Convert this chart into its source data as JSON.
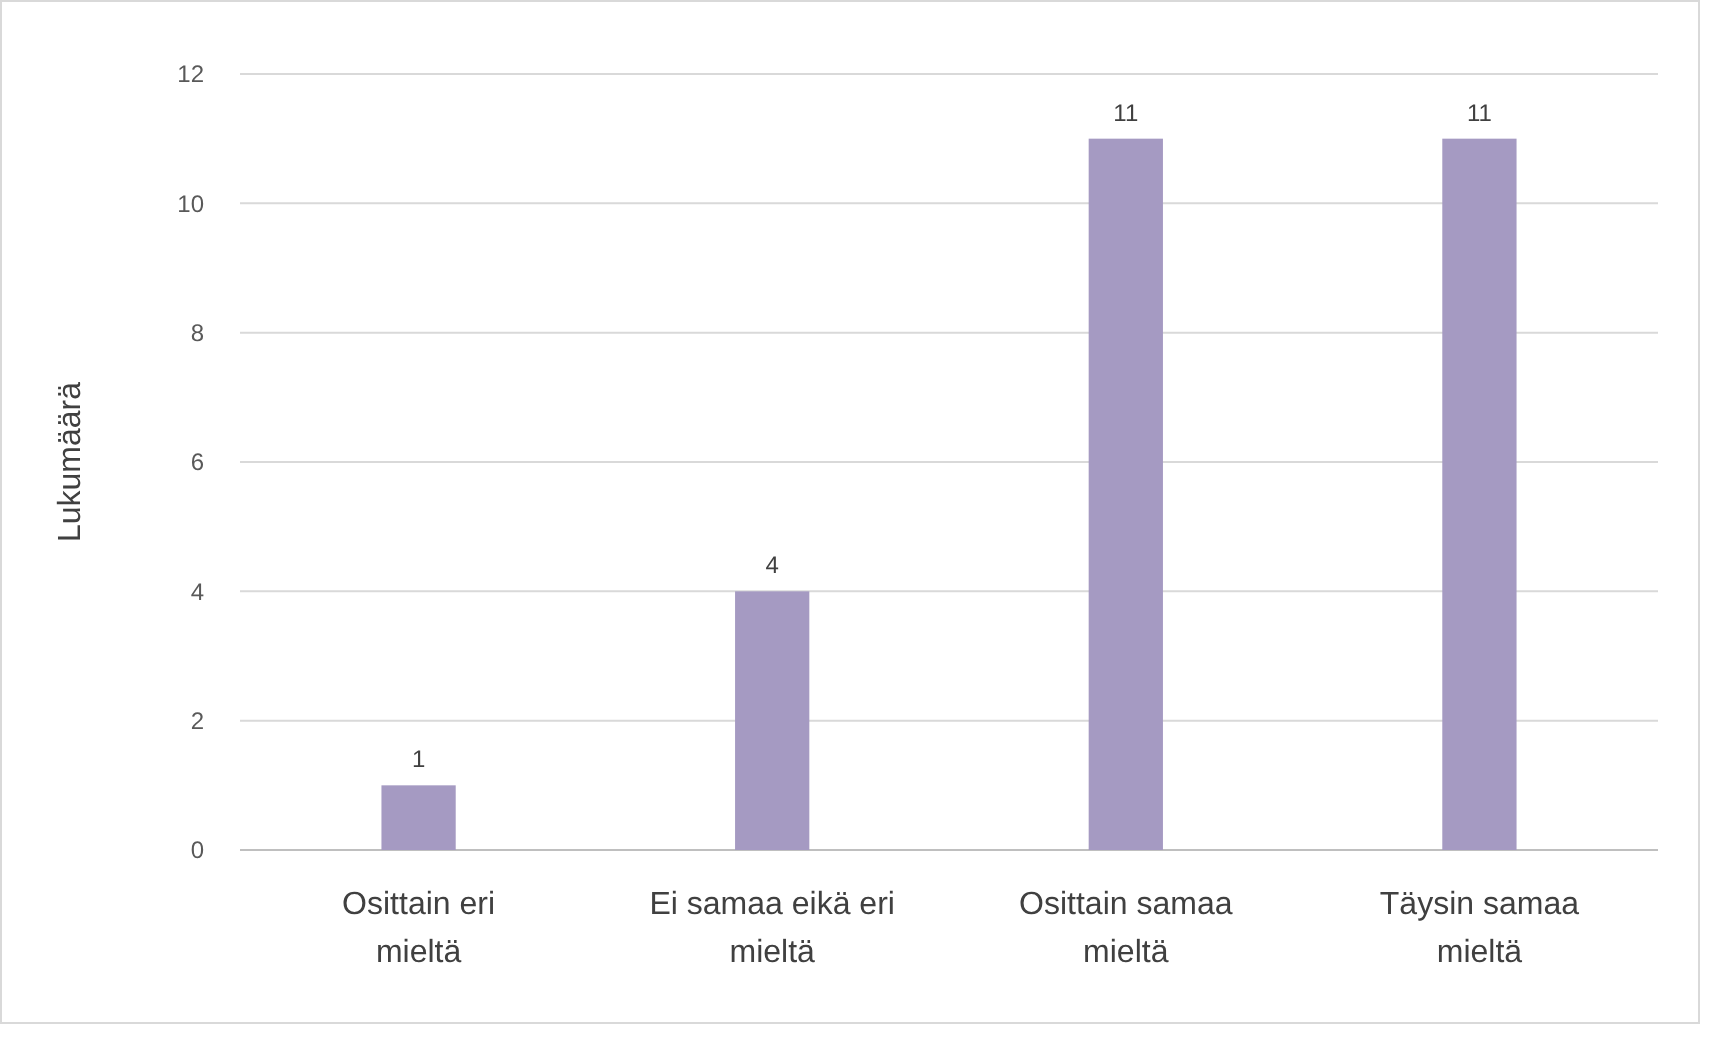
{
  "chart_data": {
    "type": "bar",
    "ylabel": "Lukumäärä",
    "categories": [
      "Osittain eri mieltä",
      "Ei samaa eikä eri mieltä",
      "Osittain samaa mieltä",
      "Täysin samaa mieltä"
    ],
    "values": [
      1,
      4,
      11,
      11
    ],
    "color": "#a59ac2",
    "ylim": [
      0,
      12
    ],
    "yticks": [
      0,
      2,
      4,
      6,
      8,
      10,
      12
    ],
    "grid": "y",
    "data_labels": true
  }
}
